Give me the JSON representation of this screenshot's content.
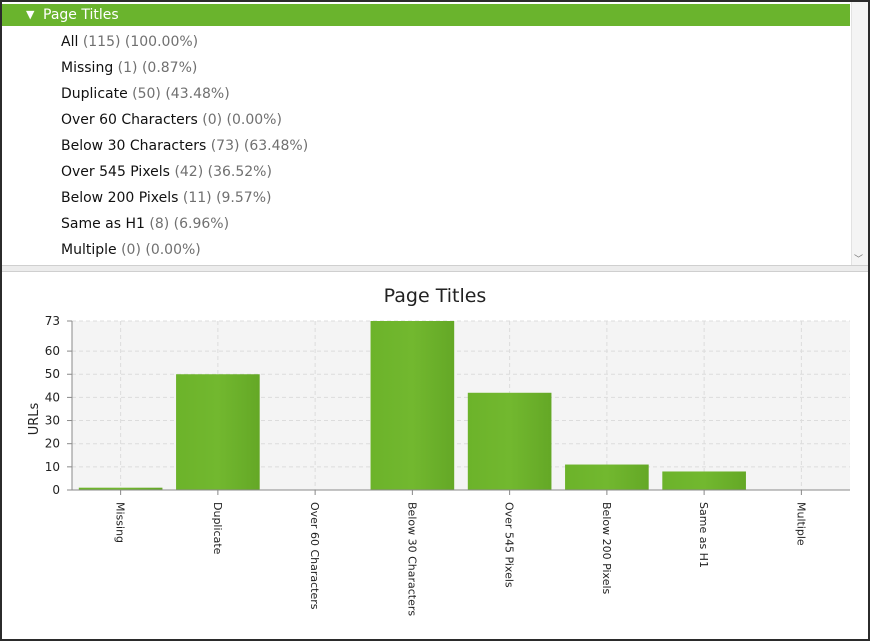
{
  "tree": {
    "header": "Page Titles",
    "items": [
      {
        "label": "All",
        "count": "(115) (100.00%)"
      },
      {
        "label": "Missing",
        "count": "(1) (0.87%)"
      },
      {
        "label": "Duplicate",
        "count": "(50) (43.48%)"
      },
      {
        "label": "Over 60 Characters",
        "count": "(0) (0.00%)"
      },
      {
        "label": "Below 30 Characters",
        "count": "(73) (63.48%)"
      },
      {
        "label": "Over 545 Pixels",
        "count": "(42) (36.52%)"
      },
      {
        "label": "Below 200 Pixels",
        "count": "(11) (9.57%)"
      },
      {
        "label": "Same as H1",
        "count": "(8) (6.96%)"
      },
      {
        "label": "Multiple",
        "count": "(0) (0.00%)"
      }
    ]
  },
  "icons": {
    "collapse": "triangle-down-icon",
    "scroll_down": "chevron-down-icon"
  },
  "colors": {
    "accent": "#6ab42d",
    "bar": "#72b82f",
    "count_text": "#707070"
  },
  "chart_data": {
    "type": "bar",
    "title": "Page Titles",
    "ylabel": "URLs",
    "xlabel": "",
    "categories": [
      "Missing",
      "Duplicate",
      "Over 60 Characters",
      "Below 30 Characters",
      "Over 545 Pixels",
      "Below 200 Pixels",
      "Same as H1",
      "Multiple"
    ],
    "values": [
      1,
      50,
      0,
      73,
      42,
      11,
      8,
      0
    ],
    "ylim": [
      0,
      73
    ],
    "yticks": [
      "0",
      "10",
      "20",
      "30",
      "40",
      "50",
      "60",
      "73"
    ],
    "grid": true,
    "legend": "none"
  }
}
